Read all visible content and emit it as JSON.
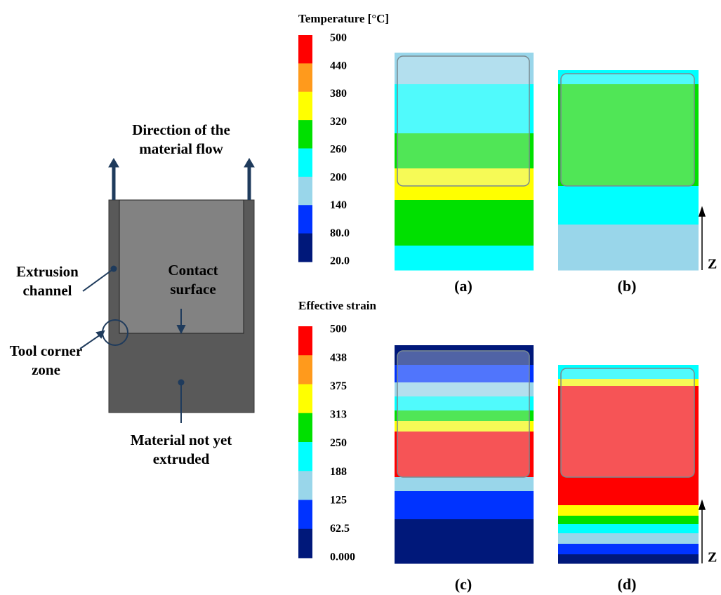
{
  "schematic": {
    "flow_label": "Direction of the material flow",
    "channel_label": "Extrusion channel",
    "contact_label": "Contact surface",
    "corner_label": "Tool corner zone",
    "material_label": "Material not yet extruded"
  },
  "temperature_legend": {
    "title": "Temperature [°C]",
    "labels": [
      "500",
      "440",
      "380",
      "320",
      "260",
      "200",
      "140",
      "80.0",
      "20.0"
    ],
    "colors": [
      "#ff0000",
      "#ff9a1c",
      "#ffff00",
      "#00e000",
      "#00ffff",
      "#99d6ea",
      "#0033ff",
      "#00187a"
    ]
  },
  "strain_legend": {
    "title": "Effective strain",
    "labels": [
      "500",
      "438",
      "375",
      "313",
      "250",
      "188",
      "125",
      "62.5",
      "0.000"
    ],
    "colors": [
      "#ff0000",
      "#ff9a1c",
      "#ffff00",
      "#00e000",
      "#00ffff",
      "#99d6ea",
      "#0033ff",
      "#00187a"
    ]
  },
  "panels": [
    {
      "label": "(a)"
    },
    {
      "label": "(b)"
    },
    {
      "label": "(c)"
    },
    {
      "label": "(d)"
    }
  ],
  "axis_label": "Z"
}
